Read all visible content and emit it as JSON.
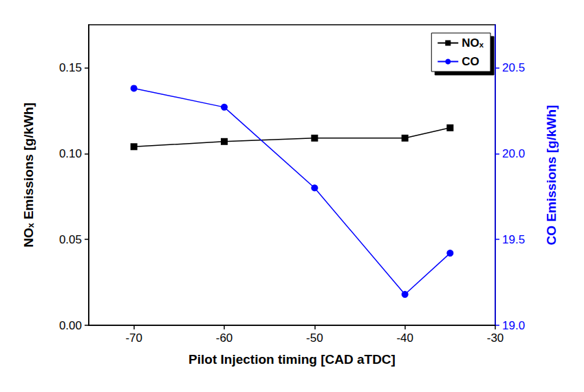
{
  "chart_data": {
    "type": "line",
    "xlabel": "Pilot Injection timing [CAD aTDC]",
    "ylabel": "NOₓ Emissions [g/kWh]",
    "y2label": "CO Emissions [g/kWh]",
    "x": [
      -70,
      -60,
      -50,
      -40,
      -35
    ],
    "series": [
      {
        "name": "NOₓ",
        "color": "#000000",
        "marker": "square",
        "values": [
          0.104,
          0.107,
          0.109,
          0.109,
          0.115
        ]
      },
      {
        "name": "CO",
        "color": "#0000ff",
        "marker": "circle",
        "axis": "y2",
        "values": [
          20.38,
          20.27,
          19.8,
          19.18,
          19.42
        ]
      }
    ],
    "xlim": [
      -75,
      -30
    ],
    "xticks": [
      -70,
      -60,
      -50,
      -40,
      -30
    ],
    "ylim": [
      0,
      0.175
    ],
    "yticks": [
      {
        "value": 0,
        "label": "0.00"
      },
      {
        "value": 0.05,
        "label": "0.05"
      },
      {
        "value": 0.1,
        "label": "0.10"
      },
      {
        "value": 0.15,
        "label": "0.15"
      }
    ],
    "y2lim": [
      19.0,
      20.75
    ],
    "y2ticks": [
      {
        "value": 19.0,
        "label": "19.0"
      },
      {
        "value": 19.5,
        "label": "19.5"
      },
      {
        "value": 20.0,
        "label": "20.0"
      },
      {
        "value": 20.5,
        "label": "20.5"
      }
    ],
    "legend": "upper right",
    "grid": false
  }
}
